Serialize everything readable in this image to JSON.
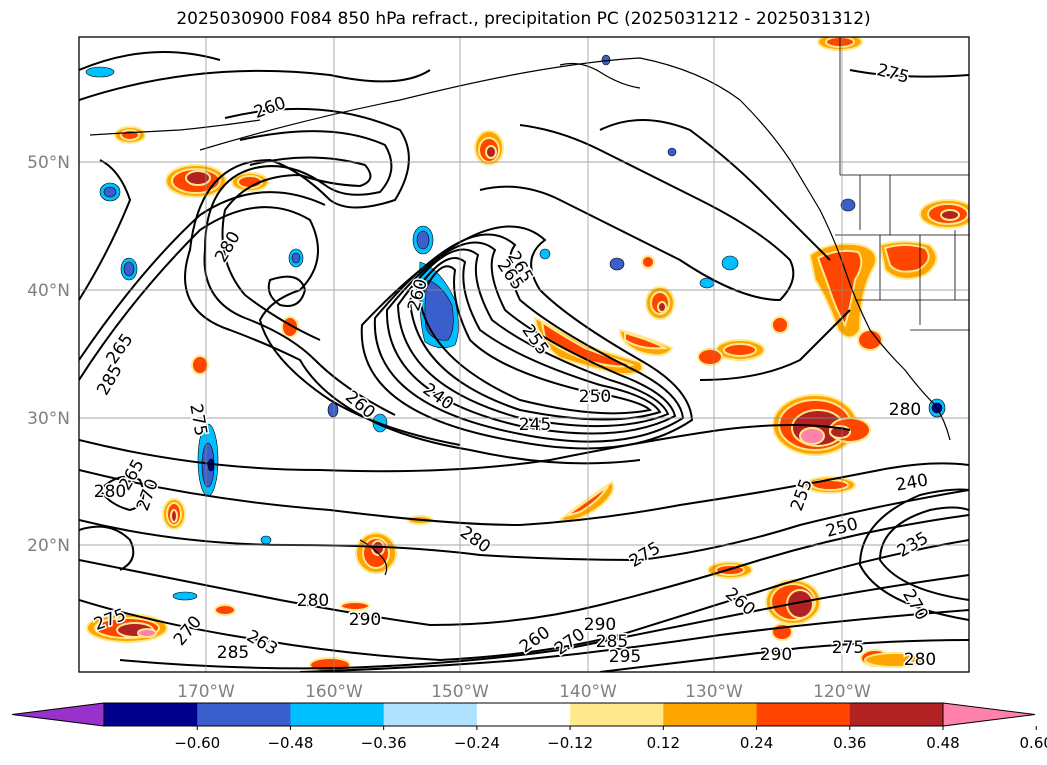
{
  "title": "2025030900 F084 850 hPa refract., precipitation PC (2025031212 - 2025031312)",
  "map": {
    "lat_labels": [
      "50°N",
      "40°N",
      "30°N",
      "20°N"
    ],
    "lon_labels": [
      "170°W",
      "160°W",
      "150°W",
      "140°W",
      "130°W",
      "120°W"
    ],
    "grid": true,
    "land_color": "#ffffff"
  },
  "contour_labels": [
    "260",
    "280",
    "265",
    "285",
    "265",
    "275",
    "280",
    "265",
    "270",
    "260",
    "255",
    "260",
    "240",
    "250",
    "245",
    "280",
    "275",
    "255",
    "250",
    "240",
    "235",
    "270",
    "260",
    "280",
    "275",
    "290",
    "285",
    "263",
    "270",
    "295",
    "260",
    "265",
    "280",
    "290",
    "285",
    "275",
    "270",
    "290",
    "280",
    "275"
  ],
  "colorbar": {
    "ticks": [
      "−0.60",
      "−0.48",
      "−0.36",
      "−0.24",
      "−0.12",
      "0.12",
      "0.24",
      "0.36",
      "0.48",
      "0.60"
    ],
    "colors": [
      "#9932cc",
      "#00008b",
      "#3a5fcd",
      "#00bfff",
      "#b0e2ff",
      "#ffffff",
      "#ffe98c",
      "#ffa500",
      "#ff4500",
      "#b22222",
      "#ff82ab"
    ]
  },
  "precip_colors": {
    "pos1": "#ffe98c",
    "pos2": "#ffa500",
    "pos3": "#ff4500",
    "pos4": "#b22222",
    "pos5": "#ff82ab",
    "neg1": "#b0e2ff",
    "neg2": "#00bfff",
    "neg3": "#3a5fcd",
    "neg4": "#00008b",
    "neg5": "#9932cc"
  }
}
